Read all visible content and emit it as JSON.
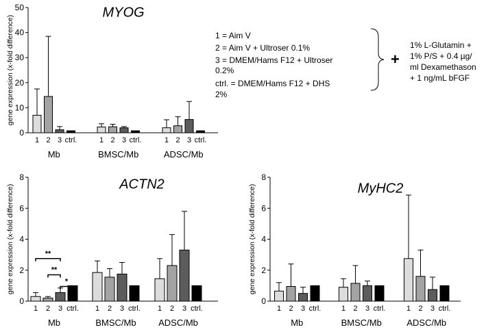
{
  "chart_data": [
    {
      "type": "bar",
      "title": "MYOG",
      "ylabel": "gene expression (x-fold difference)",
      "ylim": [
        0,
        50
      ],
      "yticks": [
        "0",
        "10",
        "20",
        "30",
        "40",
        "50"
      ],
      "groups": [
        {
          "name": "Mb",
          "ticks": [
            "1",
            "2",
            "3",
            "ctrl."
          ],
          "values": [
            7.0,
            14.5,
            1.2,
            0.8
          ],
          "errors": [
            10.5,
            24.0,
            1.3,
            0.0
          ]
        },
        {
          "name": "BMSC/Mb",
          "ticks": [
            "1",
            "2",
            "3",
            "ctrl."
          ],
          "values": [
            2.3,
            2.4,
            2.0,
            0.8
          ],
          "errors": [
            1.3,
            1.0,
            0.5,
            0.0
          ]
        },
        {
          "name": "ADSC/Mb",
          "ticks": [
            "1",
            "2",
            "3",
            "ctrl."
          ],
          "values": [
            2.0,
            2.8,
            5.3,
            0.8
          ],
          "errors": [
            3.2,
            3.6,
            7.2,
            0.0
          ]
        }
      ],
      "significance": []
    },
    {
      "type": "bar",
      "title": "ACTN2",
      "ylabel": "gene expression (x-fold difference)",
      "ylim": [
        0,
        8
      ],
      "yticks": [
        "0",
        "2",
        "4",
        "6",
        "8"
      ],
      "groups": [
        {
          "name": "Mb",
          "ticks": [
            "1",
            "2",
            "3",
            "ctrl."
          ],
          "values": [
            0.3,
            0.2,
            0.55,
            1.0
          ],
          "errors": [
            0.25,
            0.1,
            0.3,
            0.0
          ]
        },
        {
          "name": "BMSC/Mb",
          "ticks": [
            "1",
            "2",
            "3",
            "ctrl."
          ],
          "values": [
            1.85,
            1.55,
            1.75,
            1.0
          ],
          "errors": [
            0.75,
            0.55,
            0.75,
            0.0
          ]
        },
        {
          "name": "ADSC/Mb",
          "ticks": [
            "1",
            "2",
            "3",
            "ctrl."
          ],
          "values": [
            1.45,
            2.3,
            3.3,
            1.0
          ],
          "errors": [
            1.3,
            2.0,
            2.5,
            0.0
          ]
        }
      ],
      "significance": [
        {
          "from": 0,
          "to": 2,
          "label": "**",
          "y": 2.75
        },
        {
          "from": 1,
          "to": 2,
          "label": "**",
          "y": 1.7
        },
        {
          "from": 2,
          "to": 3,
          "label": "*",
          "y": 0.95
        }
      ]
    },
    {
      "type": "bar",
      "title": "MyHC2",
      "ylabel": "gene expression (x-fold difference)",
      "ylim": [
        0,
        8
      ],
      "yticks": [
        "0",
        "2",
        "4",
        "6",
        "8"
      ],
      "groups": [
        {
          "name": "Mb",
          "ticks": [
            "1",
            "2",
            "3",
            "ctrl."
          ],
          "values": [
            0.65,
            0.95,
            0.5,
            1.0
          ],
          "errors": [
            0.55,
            1.45,
            0.4,
            0.0
          ]
        },
        {
          "name": "BMSC/Mb",
          "ticks": [
            "1",
            "2",
            "3",
            "ctrl."
          ],
          "values": [
            0.9,
            1.15,
            1.0,
            1.0
          ],
          "errors": [
            0.55,
            1.15,
            0.3,
            0.0
          ]
        },
        {
          "name": "ADSC/Mb",
          "ticks": [
            "1",
            "2",
            "3",
            "ctrl."
          ],
          "values": [
            2.75,
            1.6,
            0.75,
            1.0
          ],
          "errors": [
            4.1,
            1.7,
            0.8,
            0.0
          ]
        }
      ],
      "significance": []
    }
  ],
  "legend": {
    "lines": [
      "1 = Aim V",
      "2 = Aim V + Ultroser 0.1%",
      "3 = DMEM/Hams F12 + Ultroser",
      "0.2%",
      "ctrl. = DMEM/Hams F12 + DHS",
      "2%"
    ],
    "plus": "+",
    "common_lines": [
      "1% L-Glutamin +",
      "1% P/S + 0.4 µg/",
      "ml Dexamethason",
      "+ 1 ng/mL bFGF"
    ]
  },
  "colors": {
    "bar1": "#dcdcdc",
    "bar2": "#a3a3a3",
    "bar3": "#5c5c5c",
    "ctrl": "#000000",
    "axis": "#000000",
    "text": "#000000"
  }
}
